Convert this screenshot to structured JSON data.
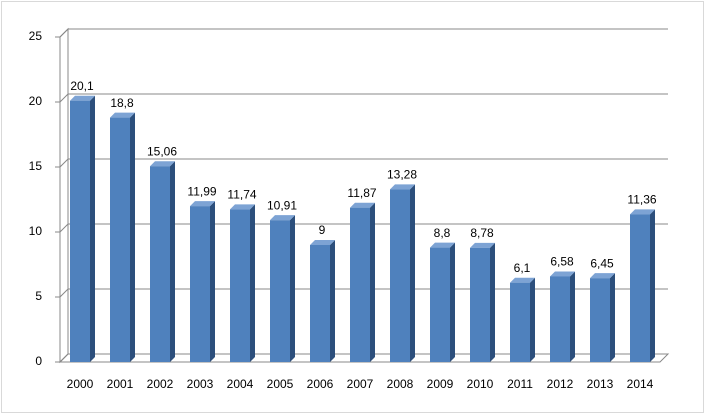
{
  "chart_data": {
    "type": "bar",
    "categories": [
      "2000",
      "2001",
      "2002",
      "2003",
      "2004",
      "2005",
      "2006",
      "2007",
      "2008",
      "2009",
      "2010",
      "2011",
      "2012",
      "2013",
      "2014"
    ],
    "values": [
      20.1,
      18.8,
      15.06,
      11.99,
      11.74,
      10.91,
      9,
      11.87,
      13.28,
      8.8,
      8.78,
      6.1,
      6.58,
      6.45,
      11.36
    ],
    "value_labels": [
      "20,1",
      "18,8",
      "15,06",
      "11,99",
      "11,74",
      "10,91",
      "9",
      "11,87",
      "13,28",
      "8,8",
      "8,78",
      "6,1",
      "6,58",
      "6,45",
      "11,36"
    ],
    "color": "#4f81bd",
    "ylim": [
      0,
      25
    ],
    "yticks": [
      0,
      5,
      10,
      15,
      20,
      25
    ],
    "grid": true
  }
}
